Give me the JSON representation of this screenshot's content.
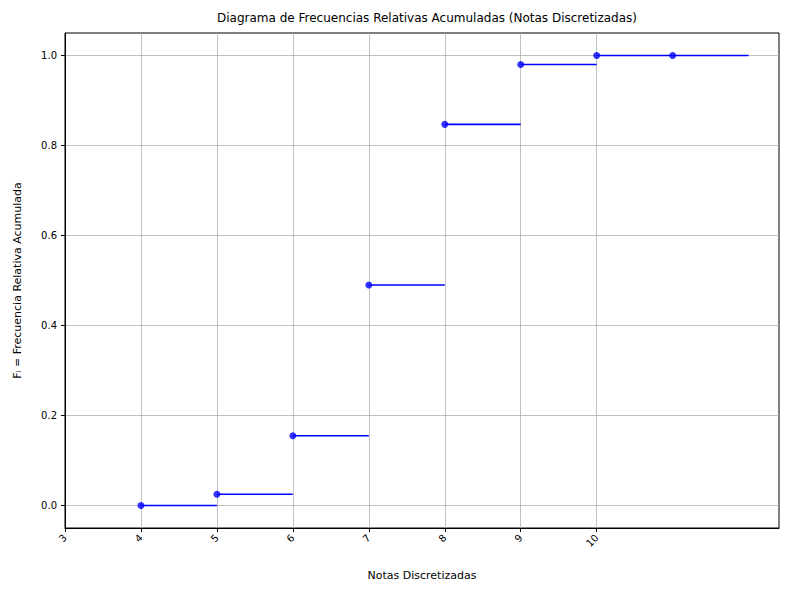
{
  "chart_data": {
    "type": "step",
    "title": "Diagrama de Frecuencias Relativas Acumuladas (Notas Discretizadas)",
    "x_label": "Notas Discretizadas",
    "y_label": "Fᵢ = Frecuencia Relativa Acumulada",
    "x": [
      4,
      5,
      6,
      7,
      8,
      9,
      10,
      11
    ],
    "values": [
      0,
      0.025,
      0.155,
      0.49,
      0.847,
      0.98,
      1,
      1
    ],
    "step_end": 12,
    "color": "#0000ff",
    "marker": "o",
    "line_style": "solid",
    "xlim": [
      3,
      12.4
    ],
    "xticks": [
      3,
      4,
      5,
      6,
      7,
      8,
      9,
      10
    ],
    "ylim": [
      -0.05,
      1.05
    ],
    "yticks": [
      {
        "value": 0,
        "label": "0.0"
      },
      {
        "value": 0.2,
        "label": "0.2"
      },
      {
        "value": 0.4,
        "label": "0.4"
      },
      {
        "value": 0.6,
        "label": "0.6"
      },
      {
        "value": 0.8,
        "label": "0.8"
      },
      {
        "value": 1,
        "label": "1.0"
      }
    ],
    "grid": true
  }
}
